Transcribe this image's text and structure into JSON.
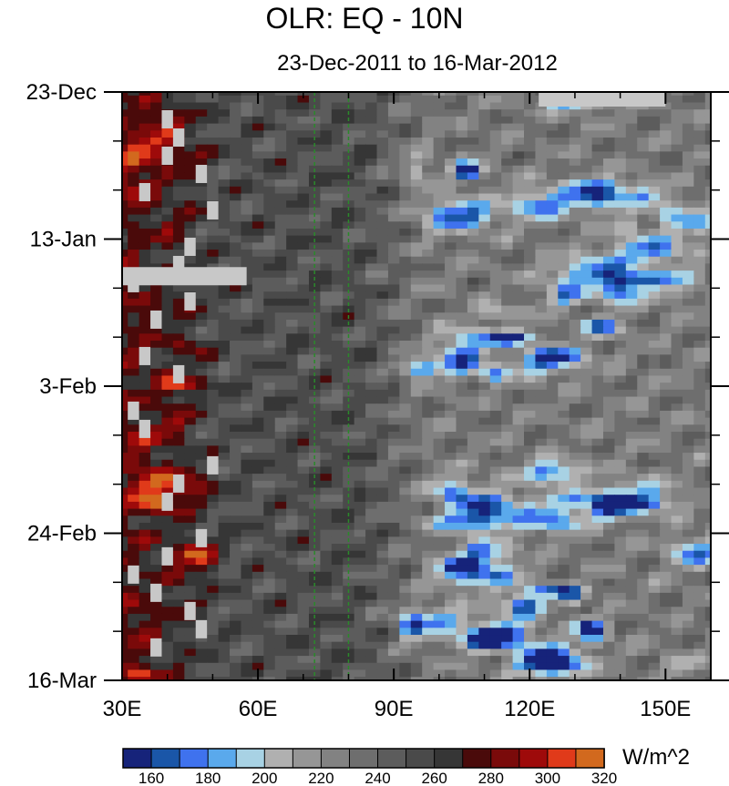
{
  "title": "OLR: EQ - 10N",
  "subtitle": "23-Dec-2011 to 16-Mar-2012",
  "chart_data": {
    "type": "heatmap",
    "title": "OLR: EQ - 10N",
    "subtitle": "23-Dec-2011 to 16-Mar-2012",
    "x_axis": {
      "label": "",
      "range": [
        30,
        160
      ],
      "ticks": [
        30,
        60,
        90,
        120,
        150
      ],
      "tick_labels": [
        "30E",
        "60E",
        "90E",
        "120E",
        "150E"
      ]
    },
    "y_axis": {
      "label": "",
      "range_dates": [
        "2011-12-23",
        "2012-03-16"
      ],
      "inverted": true,
      "tick_dates": [
        "2011-12-23",
        "2012-01-13",
        "2012-02-03",
        "2012-02-24",
        "2012-03-16"
      ],
      "tick_labels": [
        "23-Dec",
        "13-Jan",
        "3-Feb",
        "24-Feb",
        "16-Mar"
      ]
    },
    "reference_lines": {
      "style": "dashed",
      "color": "#2a8a2a",
      "x": [
        72.5,
        80
      ]
    },
    "colorbar": {
      "unit": "W/m^2",
      "levels": [
        160,
        170,
        180,
        190,
        200,
        210,
        220,
        230,
        240,
        250,
        260,
        270,
        280,
        290,
        300,
        310,
        320
      ],
      "labels": [
        "160",
        "180",
        "200",
        "220",
        "240",
        "260",
        "280",
        "300",
        "320"
      ],
      "colors": [
        "#16237a",
        "#1a56a8",
        "#3f72ee",
        "#5aa9ec",
        "#a8d2e4",
        "#b0b0b0",
        "#969696",
        "#828282",
        "#6e6e6e",
        "#5c5c5c",
        "#4a4a4a",
        "#363636",
        "#4a0a0a",
        "#7a0a0a",
        "#9e0a0a",
        "#e03a1a",
        "#d2691e"
      ]
    },
    "missing_color": "#c8c8c8"
  }
}
